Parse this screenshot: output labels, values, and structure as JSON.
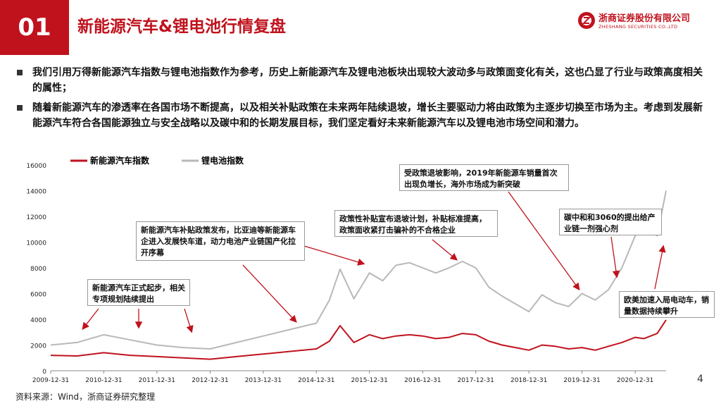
{
  "header": {
    "section_number": "01",
    "title": "新能源汽车&锂电池行情复盘",
    "logo_cn": "浙商证券股份有限公司",
    "logo_en": "ZHESHANG SECURITIES CO.,LTD"
  },
  "bullets": [
    "我们引用万得新能源汽车指数与锂电池指数作为参考，历史上新能源汽车及锂电池板块出现较大波动多与政策面变化有关，这也凸显了行业与政策高度相关的属性；",
    "随着新能源汽车的渗透率在各国市场不断提高，以及相关补贴政策在未来两年陆续退坡，增长主要驱动力将由政策为主逐步切换至市场为主。考虑到发展新能源汽车符合各国能源独立与安全战略以及碳中和的长期发展目标，我们坚定看好未来新能源汽车以及锂电池市场空间和潜力。"
  ],
  "colors": {
    "accent": "#c0121d",
    "nev_line": "#c0121d",
    "battery_line": "#b8b8b8"
  },
  "chart_data": {
    "type": "line",
    "x": [
      "2009-12-31",
      "2010-06-30",
      "2010-12-31",
      "2011-06-30",
      "2011-12-31",
      "2012-06-30",
      "2012-12-31",
      "2013-06-30",
      "2013-12-31",
      "2014-06-30",
      "2014-12-31",
      "2015-03-31",
      "2015-06-12",
      "2015-09-15",
      "2015-12-31",
      "2016-03-31",
      "2016-06-30",
      "2016-09-30",
      "2016-12-31",
      "2017-03-31",
      "2017-06-30",
      "2017-09-30",
      "2017-12-31",
      "2018-03-31",
      "2018-06-30",
      "2018-09-30",
      "2018-12-31",
      "2019-03-31",
      "2019-06-30",
      "2019-09-30",
      "2019-12-31",
      "2020-03-31",
      "2020-06-30",
      "2020-09-30",
      "2020-12-31",
      "2021-02-28",
      "2021-05-31",
      "2021-07-31"
    ],
    "series": [
      {
        "name": "新能源汽车指数",
        "values": [
          1200,
          1150,
          1400,
          1200,
          1100,
          1000,
          900,
          1100,
          1300,
          1500,
          1700,
          2300,
          3500,
          2200,
          2800,
          2500,
          2700,
          2800,
          2700,
          2500,
          2600,
          2900,
          2800,
          2300,
          2000,
          1800,
          1600,
          2000,
          1900,
          1700,
          1800,
          1600,
          1900,
          2200,
          2600,
          2500,
          2900,
          3950
        ]
      },
      {
        "name": "锂电池指数",
        "values": [
          2000,
          2200,
          2800,
          2400,
          2000,
          1800,
          1700,
          2200,
          2700,
          3200,
          3700,
          5500,
          7900,
          5600,
          7600,
          7000,
          8200,
          8400,
          8000,
          7600,
          8000,
          8500,
          8000,
          6500,
          5800,
          5200,
          4600,
          5900,
          5300,
          5000,
          6000,
          5500,
          6300,
          8000,
          10500,
          11000,
          10500,
          14000
        ]
      }
    ],
    "ylim": [
      0,
      16000
    ],
    "yticks": [
      0,
      2000,
      4000,
      6000,
      8000,
      10000,
      12000,
      14000,
      16000
    ],
    "xticks": [
      "2009-12-31",
      "2010-12-31",
      "2011-12-31",
      "2012-12-31",
      "2013-12-31",
      "2014-12-31",
      "2015-12-31",
      "2016-12-31",
      "2017-12-31",
      "2018-12-31",
      "2019-12-31",
      "2020-12-31"
    ],
    "legend_position": "top-left",
    "annotations": [
      {
        "text": "新能源汽车正式起步，相关专项规划陆续提出"
      },
      {
        "text": "新能源汽车补贴政策发布，比亚迪等新能源车企进入发展快车道，动力电池产业链国产化拉开序幕"
      },
      {
        "text": "政策性补贴宣布退坡计划，补贴标准提高，政策面收紧打击骗补的不合格企业"
      },
      {
        "text": "受政策退坡影响，2019年新能源车销量首次出现负增长，海外市场成为新突破"
      },
      {
        "text": "碳中和和3060的提出给产业链一剂强心剂"
      },
      {
        "text": "欧美加速入局电动车，销量数据持续攀升"
      }
    ]
  },
  "footer": {
    "source": "资料来源：Wind，浙商证券研究整理",
    "page": "4"
  }
}
